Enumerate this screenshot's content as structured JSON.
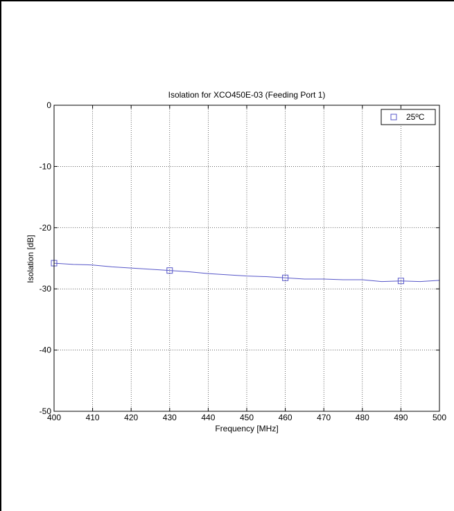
{
  "chart_data": {
    "type": "line",
    "title": "Isolation for XCO450E-03 (Feeding Port 1)",
    "xlabel": "Frequency [MHz]",
    "ylabel": "Isolation [dB]",
    "xlim": [
      400,
      500
    ],
    "ylim": [
      -50,
      0
    ],
    "xticks": [
      400,
      410,
      420,
      430,
      440,
      450,
      460,
      470,
      480,
      490,
      500
    ],
    "yticks": [
      0,
      -10,
      -20,
      -30,
      -40,
      -50
    ],
    "grid": true,
    "legend_position": "top-right",
    "series": [
      {
        "name": "25ºC",
        "color": "#5555c8",
        "marker": "square",
        "x": [
          400,
          405,
          410,
          415,
          420,
          425,
          430,
          435,
          440,
          445,
          450,
          455,
          460,
          465,
          470,
          475,
          480,
          485,
          490,
          495,
          500
        ],
        "y": [
          -25.8,
          -26.0,
          -26.1,
          -26.4,
          -26.6,
          -26.8,
          -27.0,
          -27.2,
          -27.5,
          -27.7,
          -27.9,
          -28.0,
          -28.2,
          -28.4,
          -28.4,
          -28.5,
          -28.5,
          -28.8,
          -28.7,
          -28.8,
          -28.6
        ],
        "marker_x": [
          400,
          430,
          460,
          490
        ],
        "marker_y": [
          -25.8,
          -27.0,
          -28.2,
          -28.7
        ]
      }
    ]
  }
}
